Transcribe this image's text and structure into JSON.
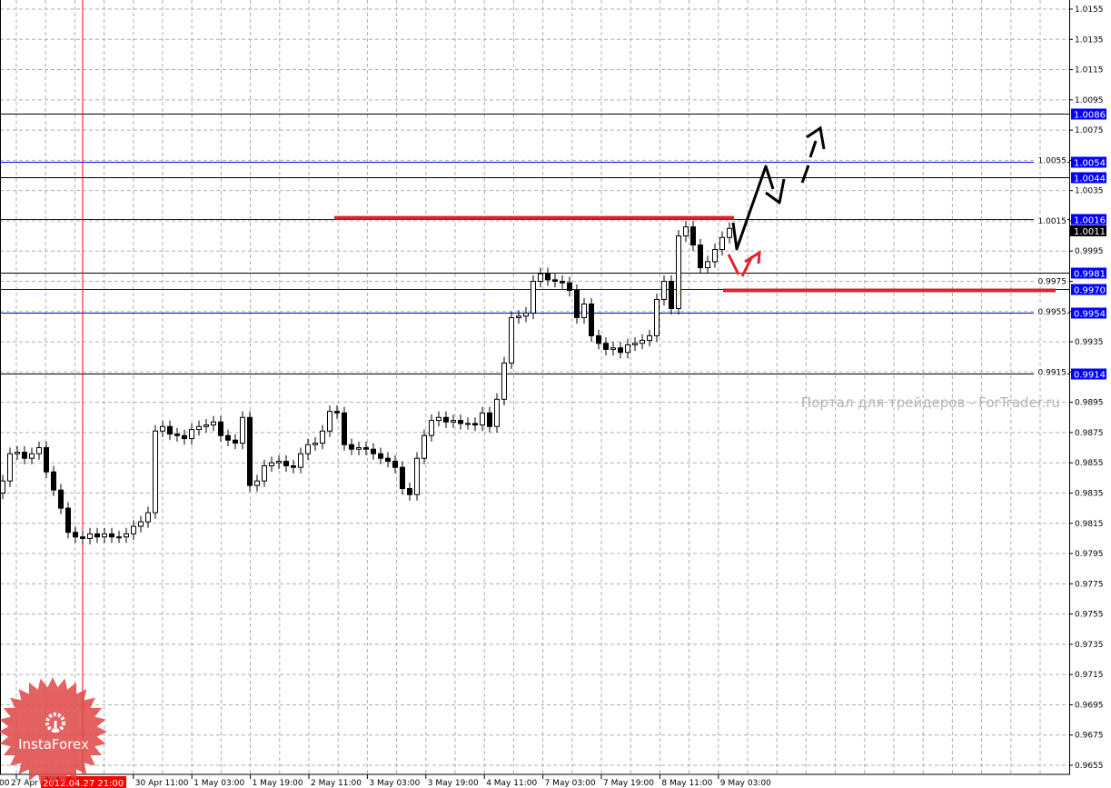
{
  "chart_data": {
    "type": "candlestick",
    "title": "",
    "xlabel": "",
    "ylabel": "",
    "ylim": [
      0.9645,
      1.0161
    ],
    "grid": true,
    "y_ticks": [
      "1.0155",
      "1.0135",
      "1.0115",
      "1.0095",
      "1.0075",
      "1.0055",
      "1.0035",
      "1.0015",
      "0.9995",
      "0.9975",
      "0.9955",
      "0.9935",
      "0.9915",
      "0.9895",
      "0.9875",
      "0.9855",
      "0.9835",
      "0.9815",
      "0.9795",
      "0.9775",
      "0.9755",
      "0.9735",
      "0.9715",
      "0.9695",
      "0.9675",
      "0.9655"
    ],
    "x_ticks": [
      "00",
      "27 Apr",
      "30 Apr 11:00",
      "1 May 03:00",
      "1 May 19:00",
      "2 May 11:00",
      "3 May 03:00",
      "3 May 19:00",
      "4 May 11:00",
      "7 May 03:00",
      "7 May 19:00",
      "8 May 11:00",
      "9 May 03:00"
    ],
    "cursor_time_label": "2012.04.27 21:00",
    "current_price": "1.0011",
    "first_open": 0.9835,
    "closes": [
      0.9843,
      0.9861,
      0.9862,
      0.9858,
      0.9861,
      0.9865,
      0.9849,
      0.9837,
      0.9825,
      0.9809,
      0.9806,
      0.9805,
      0.9808,
      0.9806,
      0.9808,
      0.9806,
      0.9806,
      0.9808,
      0.9813,
      0.9816,
      0.9822,
      0.9876,
      0.9879,
      0.9874,
      0.9873,
      0.9871,
      0.9877,
      0.9879,
      0.988,
      0.9882,
      0.9873,
      0.987,
      0.9868,
      0.9885,
      0.984,
      0.9843,
      0.9853,
      0.9855,
      0.9856,
      0.9853,
      0.9852,
      0.9861,
      0.9867,
      0.9868,
      0.9876,
      0.9889,
      0.9888,
      0.9867,
      0.9864,
      0.9865,
      0.9864,
      0.9861,
      0.9858,
      0.9856,
      0.9852,
      0.9838,
      0.9834,
      0.9858,
      0.9873,
      0.9883,
      0.9885,
      0.9882,
      0.9883,
      0.9881,
      0.9881,
      0.988,
      0.9888,
      0.9879,
      0.9897,
      0.9921,
      0.9951,
      0.9952,
      0.9954,
      0.9975,
      0.998,
      0.9976,
      0.9975,
      0.9974,
      0.9969,
      0.9951,
      0.996,
      0.9939,
      0.9934,
      0.993,
      0.9931,
      0.9928,
      0.9933,
      0.9934,
      0.9936,
      0.9939,
      0.9963,
      0.9975,
      0.9957,
      1.0005,
      1.0011,
      0.9999,
      0.9984,
      0.9988,
      0.9996,
      1.0004,
      1.001
    ],
    "levels": [
      {
        "price": 1.0086,
        "label": "1.0086",
        "line_color": "#000000"
      },
      {
        "price": 1.0054,
        "label": "1.0054",
        "line_color": "#0000ff"
      },
      {
        "price": 1.0044,
        "label": "1.0044",
        "line_color": "#000000"
      },
      {
        "price": 1.0016,
        "label": "1.0016",
        "line_color": "#0000ff"
      },
      {
        "price": 0.9981,
        "label": "0.9981",
        "line_color": "#000000"
      },
      {
        "price": 0.997,
        "label": "0.9970",
        "line_color": "#0000ff"
      },
      {
        "price": 0.9954,
        "label": "0.9954",
        "line_color": "#0000ff"
      },
      {
        "price": 0.9914,
        "label": "0.9914",
        "line_color": "#000000"
      }
    ],
    "level_label_color": "#0000ff",
    "resistance_segment_price": 1.0017,
    "support_segment_price": 0.9969,
    "annotation_color_primary": "#000000",
    "annotation_color_alternate": "#e8202a"
  },
  "watermark": "Портал для трейдеров - ForTrader.ru",
  "logo": {
    "text": "InstaForex",
    "color": "#e04646"
  }
}
